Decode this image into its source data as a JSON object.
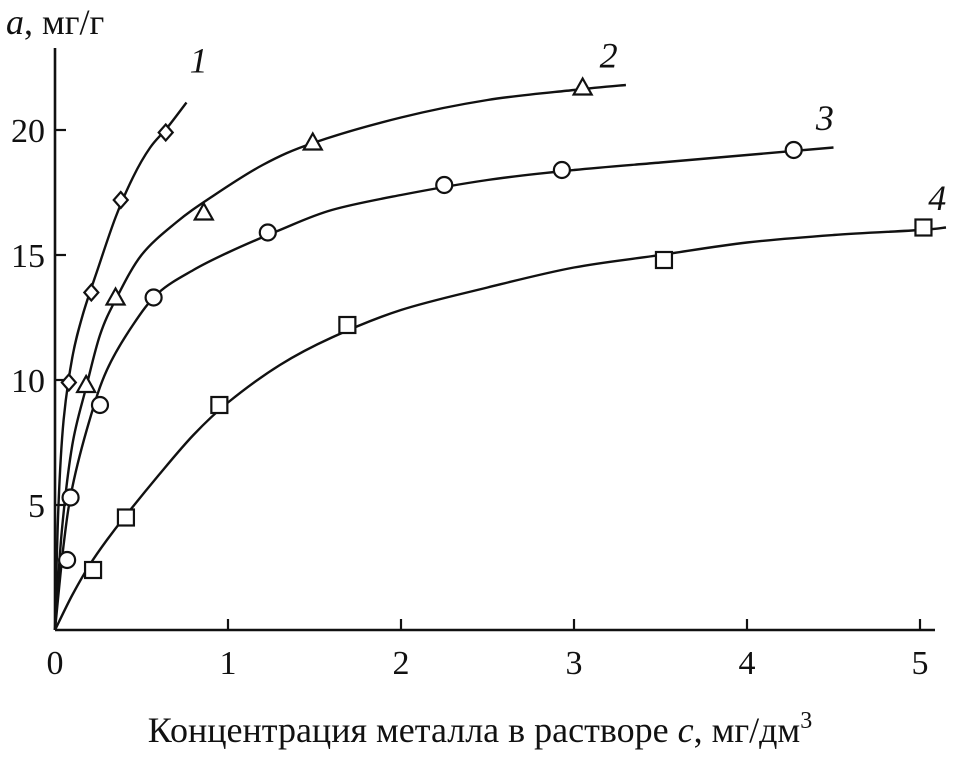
{
  "chart_data": {
    "type": "scatter",
    "title": "",
    "xlabel_main": "Концентрация металла в растворе ",
    "xlabel_var": "c",
    "xlabel_unit": ", мг/дм",
    "xlabel_sup": "3",
    "ylabel_var": "a",
    "ylabel_unit": ", мг/г",
    "xlim": [
      0,
      5.2
    ],
    "ylim": [
      0,
      23
    ],
    "x_ticks": [
      "0",
      "1",
      "2",
      "3",
      "4",
      "5"
    ],
    "x_tick_values": [
      0,
      1,
      2,
      3,
      4,
      5
    ],
    "y_ticks": [
      "5",
      "10",
      "15",
      "20"
    ],
    "y_tick_values": [
      5,
      10,
      15,
      20
    ],
    "grid": false,
    "legend": "none",
    "series": [
      {
        "name": "1",
        "marker": "diamond",
        "points": [
          [
            0.08,
            9.9
          ],
          [
            0.21,
            13.5
          ],
          [
            0.38,
            17.2
          ],
          [
            0.64,
            19.9
          ]
        ],
        "curve": [
          [
            0,
            0
          ],
          [
            0.02,
            5.0
          ],
          [
            0.05,
            8.4
          ],
          [
            0.1,
            10.9
          ],
          [
            0.16,
            12.6
          ],
          [
            0.25,
            14.5
          ],
          [
            0.35,
            16.5
          ],
          [
            0.45,
            18.1
          ],
          [
            0.55,
            19.3
          ],
          [
            0.65,
            20.1
          ],
          [
            0.76,
            21.1
          ]
        ],
        "label_at": [
          0.83,
          22.3
        ]
      },
      {
        "name": "2",
        "marker": "triangle",
        "points": [
          [
            0.18,
            9.8
          ],
          [
            0.35,
            13.3
          ],
          [
            0.86,
            16.7
          ],
          [
            1.49,
            19.5
          ],
          [
            3.05,
            21.7
          ]
        ],
        "curve": [
          [
            0,
            0
          ],
          [
            0.04,
            4.0
          ],
          [
            0.1,
            7.4
          ],
          [
            0.18,
            9.7
          ],
          [
            0.26,
            11.8
          ],
          [
            0.35,
            13.2
          ],
          [
            0.5,
            15.0
          ],
          [
            0.7,
            16.3
          ],
          [
            0.9,
            17.3
          ],
          [
            1.2,
            18.6
          ],
          [
            1.5,
            19.5
          ],
          [
            2.0,
            20.5
          ],
          [
            2.5,
            21.2
          ],
          [
            3.0,
            21.6
          ],
          [
            3.3,
            21.8
          ]
        ],
        "label_at": [
          3.2,
          22.5
        ]
      },
      {
        "name": "3",
        "marker": "circle",
        "points": [
          [
            0.07,
            2.8
          ],
          [
            0.09,
            5.3
          ],
          [
            0.26,
            9.0
          ],
          [
            0.57,
            13.3
          ],
          [
            1.23,
            15.9
          ],
          [
            2.25,
            17.8
          ],
          [
            2.93,
            18.4
          ],
          [
            4.27,
            19.2
          ]
        ],
        "curve": [
          [
            0,
            0
          ],
          [
            0.05,
            3.4
          ],
          [
            0.1,
            5.7
          ],
          [
            0.2,
            8.4
          ],
          [
            0.3,
            10.4
          ],
          [
            0.45,
            12.2
          ],
          [
            0.6,
            13.5
          ],
          [
            0.8,
            14.4
          ],
          [
            1.0,
            15.1
          ],
          [
            1.3,
            16.0
          ],
          [
            1.6,
            16.8
          ],
          [
            2.0,
            17.4
          ],
          [
            2.5,
            18.0
          ],
          [
            3.0,
            18.4
          ],
          [
            3.5,
            18.7
          ],
          [
            4.0,
            19.0
          ],
          [
            4.5,
            19.3
          ]
        ],
        "label_at": [
          4.45,
          20.0
        ]
      },
      {
        "name": "4",
        "marker": "square",
        "points": [
          [
            0.22,
            2.4
          ],
          [
            0.41,
            4.5
          ],
          [
            0.95,
            9.0
          ],
          [
            1.69,
            12.2
          ],
          [
            3.52,
            14.8
          ],
          [
            5.02,
            16.1
          ]
        ],
        "curve": [
          [
            0,
            0
          ],
          [
            0.1,
            1.4
          ],
          [
            0.2,
            2.6
          ],
          [
            0.3,
            3.6
          ],
          [
            0.4,
            4.5
          ],
          [
            0.6,
            6.2
          ],
          [
            0.8,
            7.8
          ],
          [
            1.0,
            9.1
          ],
          [
            1.3,
            10.6
          ],
          [
            1.6,
            11.7
          ],
          [
            2.0,
            12.8
          ],
          [
            2.5,
            13.7
          ],
          [
            3.0,
            14.5
          ],
          [
            3.5,
            15.0
          ],
          [
            4.0,
            15.5
          ],
          [
            4.5,
            15.8
          ],
          [
            5.0,
            16.0
          ],
          [
            5.15,
            16.1
          ]
        ],
        "label_at": [
          5.1,
          16.8
        ]
      }
    ]
  }
}
